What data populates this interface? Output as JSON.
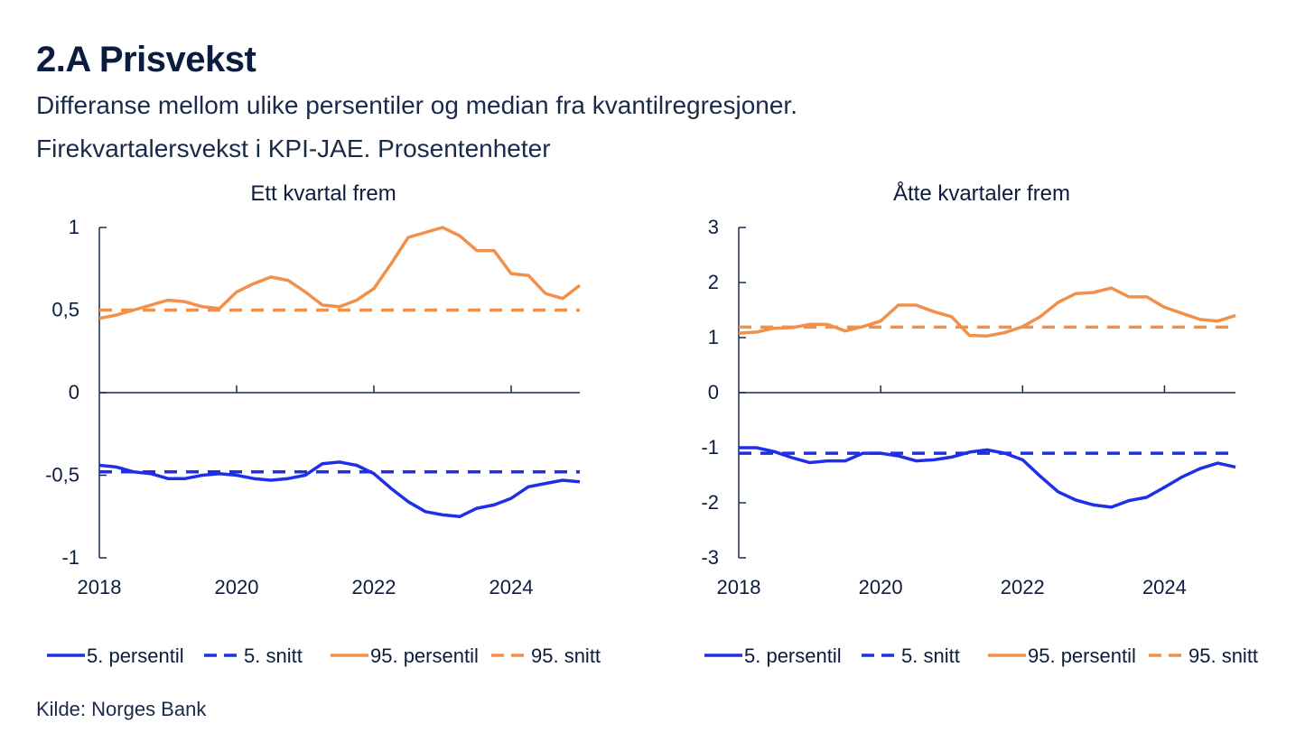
{
  "title": "2.A Prisvekst",
  "subtitle_line1": "Differanse mellom ulike persentiler og median fra kvantilregresjoner.",
  "subtitle_line2": "Firekvartalersvekst i KPI-JAE. Prosentenheter",
  "source": "Kilde: Norges Bank",
  "colors": {
    "blue": "#1f2fe8",
    "orange": "#f0904a",
    "axis": "#1a2a4a"
  },
  "chart_data": [
    {
      "type": "line",
      "title": "Ett kvartal frem",
      "xlabel": "",
      "ylabel": "",
      "xlim": [
        2018.0,
        2025.0
      ],
      "ylim": [
        -1,
        1
      ],
      "yticks": [
        1,
        0.5,
        0,
        -0.5,
        -1
      ],
      "ytick_labels": [
        "1",
        "0,5",
        "0",
        "-0,5",
        "-1"
      ],
      "xticks": [
        2018,
        2020,
        2022,
        2024
      ],
      "xtick_labels": [
        "2018",
        "2020",
        "2022",
        "2024"
      ],
      "x": [
        2018.0,
        2018.25,
        2018.5,
        2018.75,
        2019.0,
        2019.25,
        2019.5,
        2019.75,
        2020.0,
        2020.25,
        2020.5,
        2020.75,
        2021.0,
        2021.25,
        2021.5,
        2021.75,
        2022.0,
        2022.25,
        2022.5,
        2022.75,
        2023.0,
        2023.25,
        2023.5,
        2023.75,
        2024.0,
        2024.25,
        2024.5,
        2024.75,
        2025.0
      ],
      "series": [
        {
          "name": "5. persentil",
          "style": "solid",
          "color": "blue",
          "values": [
            -0.44,
            -0.45,
            -0.48,
            -0.49,
            -0.52,
            -0.52,
            -0.5,
            -0.49,
            -0.5,
            -0.52,
            -0.53,
            -0.52,
            -0.5,
            -0.43,
            -0.42,
            -0.44,
            -0.49,
            -0.58,
            -0.66,
            -0.72,
            -0.74,
            -0.75,
            -0.7,
            -0.68,
            -0.64,
            -0.57,
            -0.55,
            -0.53,
            -0.54
          ]
        },
        {
          "name": "5. snitt",
          "style": "dashed",
          "color": "blue",
          "values": [
            -0.48,
            -0.48,
            -0.48,
            -0.48,
            -0.48,
            -0.48,
            -0.48,
            -0.48,
            -0.48,
            -0.48,
            -0.48,
            -0.48,
            -0.48,
            -0.48,
            -0.48,
            -0.48,
            -0.48,
            -0.48,
            -0.48,
            -0.48,
            -0.48,
            -0.48,
            -0.48,
            -0.48,
            -0.48,
            -0.48,
            -0.48,
            -0.48,
            -0.48
          ]
        },
        {
          "name": "95. persentil",
          "style": "solid",
          "color": "orange",
          "values": [
            0.45,
            0.47,
            0.5,
            0.53,
            0.56,
            0.55,
            0.52,
            0.51,
            0.61,
            0.66,
            0.7,
            0.68,
            0.61,
            0.53,
            0.52,
            0.56,
            0.63,
            0.78,
            0.94,
            0.97,
            1.0,
            0.95,
            0.86,
            0.86,
            0.72,
            0.71,
            0.6,
            0.57,
            0.65
          ]
        },
        {
          "name": "95. snitt",
          "style": "dashed",
          "color": "orange",
          "values": [
            0.5,
            0.5,
            0.5,
            0.5,
            0.5,
            0.5,
            0.5,
            0.5,
            0.5,
            0.5,
            0.5,
            0.5,
            0.5,
            0.5,
            0.5,
            0.5,
            0.5,
            0.5,
            0.5,
            0.5,
            0.5,
            0.5,
            0.5,
            0.5,
            0.5,
            0.5,
            0.5,
            0.5,
            0.5
          ]
        }
      ]
    },
    {
      "type": "line",
      "title": "Åtte kvartaler frem",
      "xlabel": "",
      "ylabel": "",
      "xlim": [
        2018.0,
        2025.0
      ],
      "ylim": [
        -3,
        3
      ],
      "yticks": [
        3,
        2,
        1,
        0,
        -1,
        -2,
        -3
      ],
      "ytick_labels": [
        "3",
        "2",
        "1",
        "0",
        "-1",
        "-2",
        "-3"
      ],
      "xticks": [
        2018,
        2020,
        2022,
        2024
      ],
      "xtick_labels": [
        "2018",
        "2020",
        "2022",
        "2024"
      ],
      "x": [
        2018.0,
        2018.25,
        2018.5,
        2018.75,
        2019.0,
        2019.25,
        2019.5,
        2019.75,
        2020.0,
        2020.25,
        2020.5,
        2020.75,
        2021.0,
        2021.25,
        2021.5,
        2021.75,
        2022.0,
        2022.25,
        2022.5,
        2022.75,
        2023.0,
        2023.25,
        2023.5,
        2023.75,
        2024.0,
        2024.25,
        2024.5,
        2024.75,
        2025.0
      ],
      "series": [
        {
          "name": "5. persentil",
          "style": "solid",
          "color": "blue",
          "values": [
            -1.0,
            -1.0,
            -1.07,
            -1.18,
            -1.27,
            -1.24,
            -1.24,
            -1.1,
            -1.1,
            -1.15,
            -1.24,
            -1.22,
            -1.17,
            -1.08,
            -1.04,
            -1.1,
            -1.22,
            -1.52,
            -1.8,
            -1.95,
            -2.04,
            -2.08,
            -1.96,
            -1.9,
            -1.72,
            -1.53,
            -1.38,
            -1.28,
            -1.35
          ]
        },
        {
          "name": "5. snitt",
          "style": "dashed",
          "color": "blue",
          "values": [
            -1.1,
            -1.1,
            -1.1,
            -1.1,
            -1.1,
            -1.1,
            -1.1,
            -1.1,
            -1.1,
            -1.1,
            -1.1,
            -1.1,
            -1.1,
            -1.1,
            -1.1,
            -1.1,
            -1.1,
            -1.1,
            -1.1,
            -1.1,
            -1.1,
            -1.1,
            -1.1,
            -1.1,
            -1.1,
            -1.1,
            -1.1,
            -1.1,
            -1.1
          ]
        },
        {
          "name": "95. persentil",
          "style": "solid",
          "color": "orange",
          "values": [
            1.08,
            1.1,
            1.17,
            1.18,
            1.24,
            1.24,
            1.12,
            1.2,
            1.3,
            1.59,
            1.59,
            1.47,
            1.38,
            1.04,
            1.03,
            1.09,
            1.2,
            1.38,
            1.64,
            1.8,
            1.82,
            1.9,
            1.74,
            1.74,
            1.55,
            1.44,
            1.33,
            1.3,
            1.4
          ]
        },
        {
          "name": "95. snitt",
          "style": "dashed",
          "color": "orange",
          "values": [
            1.19,
            1.19,
            1.19,
            1.19,
            1.19,
            1.19,
            1.19,
            1.19,
            1.19,
            1.19,
            1.19,
            1.19,
            1.19,
            1.19,
            1.19,
            1.19,
            1.19,
            1.19,
            1.19,
            1.19,
            1.19,
            1.19,
            1.19,
            1.19,
            1.19,
            1.19,
            1.19,
            1.19,
            1.19
          ]
        }
      ]
    }
  ]
}
